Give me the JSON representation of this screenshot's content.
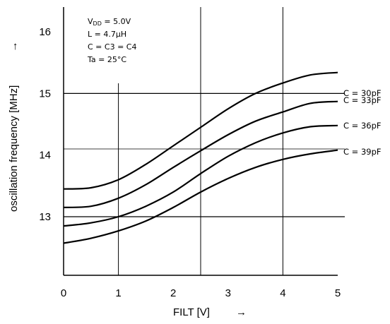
{
  "chart_data": {
    "type": "line",
    "title": "",
    "xlabel": "FILT [V]",
    "xlabel_arrow": "→",
    "ylabel": "oscillation frequency [MHz]",
    "ylabel_arrow": "→",
    "xlim": [
      0,
      5
    ],
    "ylim": [
      12.0,
      16.5
    ],
    "x_ticks": [
      "0",
      "1",
      "2",
      "3",
      "4",
      "5"
    ],
    "y_ticks": [
      "13",
      "14",
      "15",
      "16"
    ],
    "grid": {
      "vertical_at": [
        1,
        2.5,
        4
      ],
      "horizontal_at": [
        13.0,
        14.1,
        15.0
      ]
    },
    "conditions": {
      "vdd_prefix": "V",
      "vdd_sub": "DD",
      "vdd_value": " = 5.0V",
      "inductance": "L = 4.7μH",
      "capacitance": "C = C3 = C4",
      "temperature": "Ta = 25°C"
    },
    "x": [
      0,
      0.5,
      1,
      1.5,
      2,
      2.5,
      3,
      3.5,
      4,
      4.5,
      5
    ],
    "series": [
      {
        "name": "C = 30pF",
        "values": [
          13.45,
          13.47,
          13.6,
          13.85,
          14.15,
          14.45,
          14.75,
          15.0,
          15.17,
          15.3,
          15.34
        ]
      },
      {
        "name": "C = 33pF",
        "values": [
          13.15,
          13.17,
          13.3,
          13.52,
          13.8,
          14.07,
          14.33,
          14.55,
          14.7,
          14.84,
          14.87
        ]
      },
      {
        "name": "C = 36pF",
        "values": [
          12.85,
          12.9,
          13.0,
          13.17,
          13.4,
          13.7,
          13.98,
          14.2,
          14.36,
          14.46,
          14.48
        ]
      },
      {
        "name": "C = 39pF",
        "values": [
          12.57,
          12.65,
          12.77,
          12.93,
          13.15,
          13.4,
          13.62,
          13.8,
          13.93,
          14.02,
          14.08
        ]
      }
    ]
  }
}
